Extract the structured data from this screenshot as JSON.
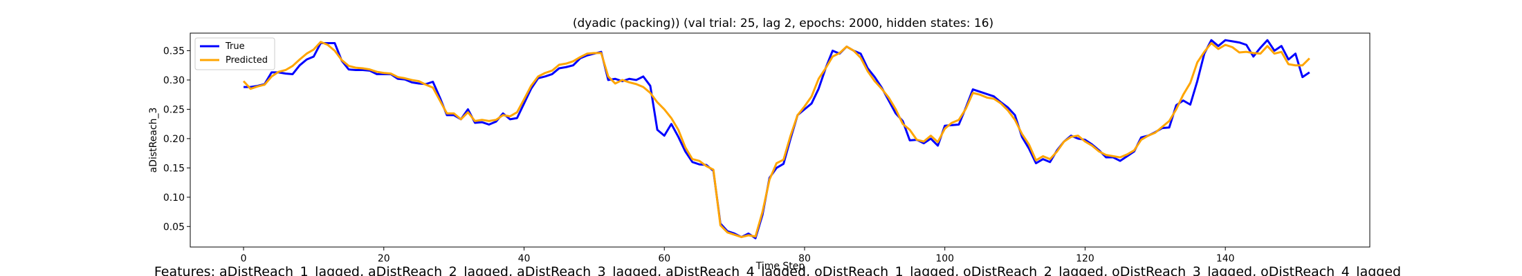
{
  "chart_data": {
    "type": "line",
    "title": "(dyadic (packing)) (val trial: 25, lag 2, epochs: 2000, hidden states: 16)",
    "xlabel": "Time Step",
    "ylabel": "aDistReach_3",
    "xlim": [
      -7.6,
      160.6
    ],
    "ylim": [
      0.015,
      0.38
    ],
    "xticks": [
      0,
      20,
      40,
      60,
      80,
      100,
      120,
      140
    ],
    "yticks": [
      0.05,
      0.1,
      0.15,
      0.2,
      0.25,
      0.3,
      0.35
    ],
    "ytick_labels": [
      "0.05",
      "0.10",
      "0.15",
      "0.20",
      "0.25",
      "0.30",
      "0.35"
    ],
    "grid": false,
    "legend_position": "top-left",
    "series": [
      {
        "name": "True",
        "color": "#0000ff",
        "values": [
          0.288,
          0.288,
          0.29,
          0.293,
          0.313,
          0.313,
          0.311,
          0.31,
          0.325,
          0.335,
          0.34,
          0.363,
          0.363,
          0.363,
          0.333,
          0.318,
          0.317,
          0.317,
          0.316,
          0.31,
          0.31,
          0.31,
          0.302,
          0.301,
          0.296,
          0.294,
          0.293,
          0.297,
          0.27,
          0.24,
          0.24,
          0.233,
          0.25,
          0.227,
          0.228,
          0.224,
          0.229,
          0.243,
          0.233,
          0.235,
          0.26,
          0.285,
          0.303,
          0.306,
          0.31,
          0.32,
          0.322,
          0.325,
          0.337,
          0.342,
          0.345,
          0.348,
          0.3,
          0.302,
          0.298,
          0.302,
          0.3,
          0.306,
          0.29,
          0.215,
          0.205,
          0.225,
          0.203,
          0.178,
          0.16,
          0.156,
          0.155,
          0.145,
          0.055,
          0.042,
          0.038,
          0.032,
          0.038,
          0.03,
          0.07,
          0.133,
          0.15,
          0.157,
          0.2,
          0.24,
          0.25,
          0.26,
          0.285,
          0.32,
          0.35,
          0.345,
          0.357,
          0.35,
          0.345,
          0.32,
          0.305,
          0.287,
          0.265,
          0.243,
          0.23,
          0.197,
          0.198,
          0.192,
          0.2,
          0.188,
          0.222,
          0.223,
          0.224,
          0.253,
          0.284,
          0.28,
          0.276,
          0.272,
          0.262,
          0.253,
          0.24,
          0.203,
          0.183,
          0.158,
          0.165,
          0.16,
          0.18,
          0.195,
          0.205,
          0.2,
          0.198,
          0.19,
          0.18,
          0.168,
          0.168,
          0.162,
          0.17,
          0.178,
          0.202,
          0.205,
          0.211,
          0.218,
          0.219,
          0.257,
          0.265,
          0.258,
          0.298,
          0.345,
          0.368,
          0.358,
          0.368,
          0.366,
          0.364,
          0.36,
          0.34,
          0.355,
          0.368,
          0.35,
          0.358,
          0.335,
          0.345,
          0.305,
          0.313
        ]
      },
      {
        "name": "Predicted",
        "color": "#ffa500",
        "values": [
          0.298,
          0.285,
          0.289,
          0.292,
          0.306,
          0.314,
          0.317,
          0.324,
          0.335,
          0.345,
          0.352,
          0.365,
          0.36,
          0.35,
          0.334,
          0.324,
          0.321,
          0.32,
          0.318,
          0.314,
          0.312,
          0.311,
          0.305,
          0.303,
          0.3,
          0.298,
          0.292,
          0.287,
          0.265,
          0.243,
          0.243,
          0.233,
          0.245,
          0.23,
          0.232,
          0.23,
          0.232,
          0.24,
          0.238,
          0.245,
          0.267,
          0.29,
          0.306,
          0.312,
          0.316,
          0.326,
          0.328,
          0.332,
          0.339,
          0.345,
          0.346,
          0.346,
          0.306,
          0.294,
          0.3,
          0.296,
          0.293,
          0.288,
          0.278,
          0.262,
          0.25,
          0.235,
          0.215,
          0.185,
          0.165,
          0.162,
          0.153,
          0.147,
          0.052,
          0.04,
          0.036,
          0.032,
          0.035,
          0.033,
          0.075,
          0.13,
          0.158,
          0.164,
          0.205,
          0.24,
          0.255,
          0.272,
          0.302,
          0.32,
          0.34,
          0.346,
          0.357,
          0.35,
          0.338,
          0.315,
          0.298,
          0.285,
          0.27,
          0.25,
          0.225,
          0.215,
          0.198,
          0.195,
          0.205,
          0.194,
          0.217,
          0.227,
          0.232,
          0.251,
          0.278,
          0.275,
          0.27,
          0.268,
          0.26,
          0.248,
          0.232,
          0.208,
          0.19,
          0.163,
          0.17,
          0.165,
          0.178,
          0.195,
          0.203,
          0.205,
          0.195,
          0.188,
          0.178,
          0.172,
          0.17,
          0.168,
          0.173,
          0.18,
          0.198,
          0.205,
          0.21,
          0.22,
          0.23,
          0.25,
          0.275,
          0.295,
          0.33,
          0.348,
          0.363,
          0.353,
          0.36,
          0.356,
          0.347,
          0.348,
          0.346,
          0.345,
          0.358,
          0.345,
          0.348,
          0.327,
          0.325,
          0.325,
          0.337
        ]
      }
    ],
    "caption": "Features: aDistReach_1_lagged, aDistReach_2_lagged, aDistReach_3_lagged, aDistReach_4_lagged, oDistReach_1_lagged, oDistReach_2_lagged, oDistReach_3_lagged, oDistReach_4_lagged"
  }
}
